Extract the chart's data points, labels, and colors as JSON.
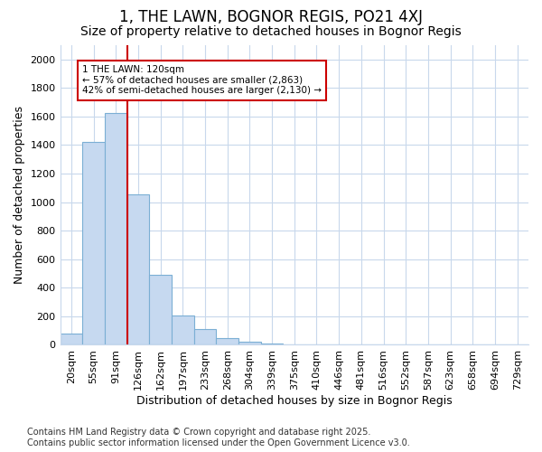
{
  "title": "1, THE LAWN, BOGNOR REGIS, PO21 4XJ",
  "subtitle": "Size of property relative to detached houses in Bognor Regis",
  "xlabel": "Distribution of detached houses by size in Bognor Regis",
  "ylabel": "Number of detached properties",
  "footer_line1": "Contains HM Land Registry data © Crown copyright and database right 2025.",
  "footer_line2": "Contains public sector information licensed under the Open Government Licence v3.0.",
  "categories": [
    "20sqm",
    "55sqm",
    "91sqm",
    "126sqm",
    "162sqm",
    "197sqm",
    "233sqm",
    "268sqm",
    "304sqm",
    "339sqm",
    "375sqm",
    "410sqm",
    "446sqm",
    "481sqm",
    "516sqm",
    "552sqm",
    "587sqm",
    "623sqm",
    "658sqm",
    "694sqm",
    "729sqm"
  ],
  "values": [
    80,
    1420,
    1625,
    1055,
    490,
    205,
    110,
    45,
    20,
    8,
    3,
    0,
    0,
    0,
    0,
    0,
    0,
    0,
    0,
    0,
    0
  ],
  "bar_color": "#c6d9f0",
  "bar_edge_color": "#7bafd4",
  "bar_alpha": 1.0,
  "grid_color": "#c8d8ec",
  "annotation_text": "1 THE LAWN: 120sqm\n← 57% of detached houses are smaller (2,863)\n42% of semi-detached houses are larger (2,130) →",
  "annotation_box_color": "#ffffff",
  "annotation_box_edge": "#cc0000",
  "vline_color": "#cc0000",
  "vline_x": 2.5,
  "ylim": [
    0,
    2100
  ],
  "yticks": [
    0,
    200,
    400,
    600,
    800,
    1000,
    1200,
    1400,
    1600,
    1800,
    2000
  ],
  "bg_color": "#ffffff",
  "plot_bg_color": "#ffffff",
  "title_fontsize": 12,
  "subtitle_fontsize": 10,
  "tick_fontsize": 8,
  "xlabel_fontsize": 9,
  "ylabel_fontsize": 9,
  "footer_fontsize": 7
}
